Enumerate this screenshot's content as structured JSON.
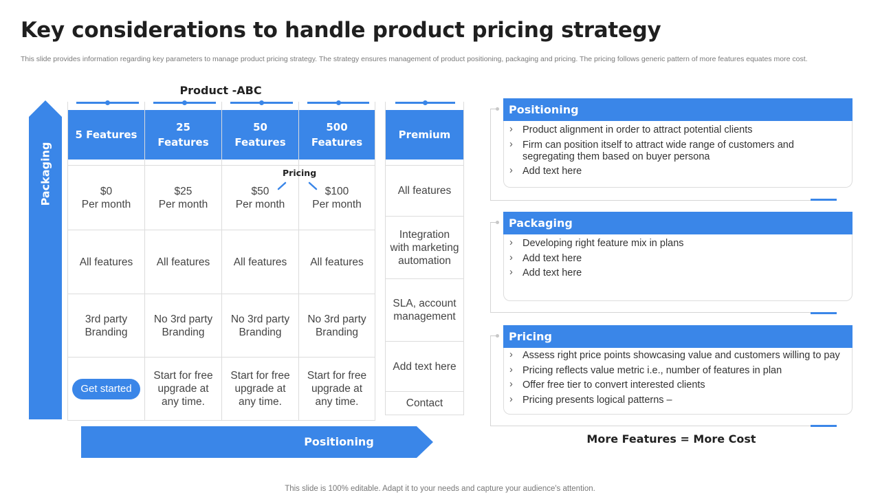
{
  "title": "Key considerations to handle product pricing strategy",
  "subtitle": "This slide provides information regarding key parameters to manage product pricing strategy. The strategy ensures management of product positioning, packaging and pricing. The pricing follows generic pattern of more features equates more cost.",
  "product_label": "Product -ABC",
  "axis": {
    "vertical": "Packaging",
    "horizontal": "Positioning"
  },
  "pricing_note": "Pricing",
  "accent_color": "#3a86e8",
  "plans": [
    {
      "header": "5 Features",
      "price": "$0",
      "period": "Per month",
      "features": "All features",
      "branding": "3rd party Branding",
      "cta": "Get started"
    },
    {
      "header": "25 Features",
      "price": "$25",
      "period": "Per month",
      "features": "All features",
      "branding": "No 3rd party Branding",
      "cta": "Start for free upgrade at any time."
    },
    {
      "header": "50 Features",
      "price": "$50",
      "period": "Per month",
      "features": "All features",
      "branding": "No 3rd party Branding",
      "cta": "Start for free upgrade at any time."
    },
    {
      "header": "500 Features",
      "price": "$100",
      "period": "Per month",
      "features": "All features",
      "branding": "No 3rd party Branding",
      "cta": "Start for free upgrade at any time."
    }
  ],
  "premium": {
    "header": "Premium",
    "items": [
      "All features",
      "Integration with marketing automation",
      "SLA, account management",
      "Add text here",
      "Contact"
    ]
  },
  "panels": [
    {
      "title": "Positioning",
      "items": [
        "Product alignment in order to attract potential clients",
        "Firm can position itself to attract wide range of customers and segregating them based on buyer persona",
        "Add text here"
      ]
    },
    {
      "title": "Packaging",
      "items": [
        "Developing right feature mix in plans",
        "Add text here",
        "Add text here"
      ]
    },
    {
      "title": "Pricing",
      "items": [
        "Assess right price points showcasing value and customers willing to pay",
        "Pricing reflects value metric i.e., number of features in plan",
        "Offer free tier to convert interested clients",
        "Pricing presents logical patterns –"
      ]
    }
  ],
  "summary": "More Features = More Cost",
  "footer": "This slide is 100% editable. Adapt it to your needs and capture your audience's attention."
}
